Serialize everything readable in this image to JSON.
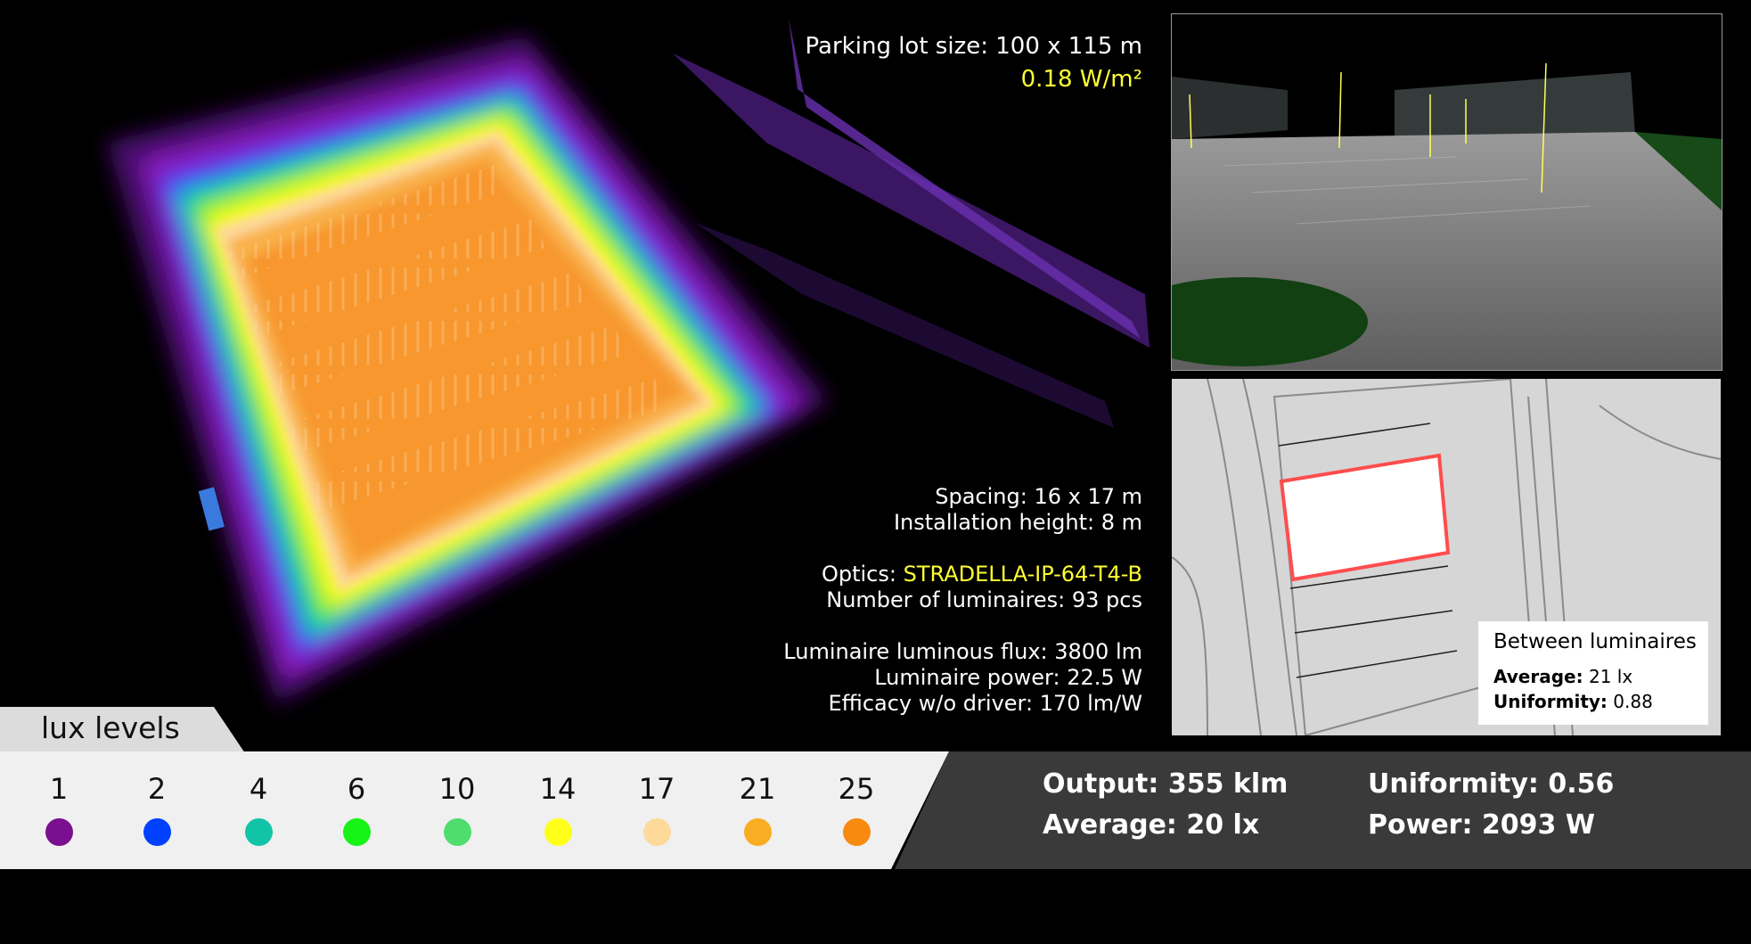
{
  "overlay": {
    "lot_size": "Parking lot size: 100 x 115 m",
    "power_density": "0.18 W/m²",
    "spacing": "Spacing: 16 x 17 m",
    "height": "Installation height: 8 m",
    "optics_label": "Optics:",
    "optics_value": "STRADELLA-IP-64-T4-B",
    "luminaires": "Number of luminaires: 93 pcs",
    "flux": "Luminaire luminous flux: 3800 lm",
    "power": "Luminaire power: 22.5 W",
    "efficacy": "Efficacy w/o driver: 170 lm/W"
  },
  "callout": {
    "title": "Between luminaires",
    "average_label": "Average:",
    "average_value": "21 lx",
    "uniformity_label": "Uniformity:",
    "uniformity_value": "0.88"
  },
  "legend": {
    "title": "lux levels",
    "levels": [
      {
        "value": "1",
        "color": "#7a0f8f"
      },
      {
        "value": "2",
        "color": "#0040ff"
      },
      {
        "value": "4",
        "color": "#12c4a6"
      },
      {
        "value": "6",
        "color": "#17f217"
      },
      {
        "value": "10",
        "color": "#4fdd6e"
      },
      {
        "value": "14",
        "color": "#ffff1a"
      },
      {
        "value": "17",
        "color": "#fdd99a"
      },
      {
        "value": "21",
        "color": "#f9ad23"
      },
      {
        "value": "25",
        "color": "#f98a10"
      }
    ]
  },
  "stats": {
    "output": "Output: 355 klm",
    "average": "Average: 20 lx",
    "uniformity": "Uniformity: 0.56",
    "power": "Power: 2093 W"
  },
  "colors": {
    "accent_yellow": "#ffff33",
    "highlight_red": "#ff4d4d",
    "legend_bg": "#f0f0f0",
    "stats_bg": "#3a3a3a"
  }
}
